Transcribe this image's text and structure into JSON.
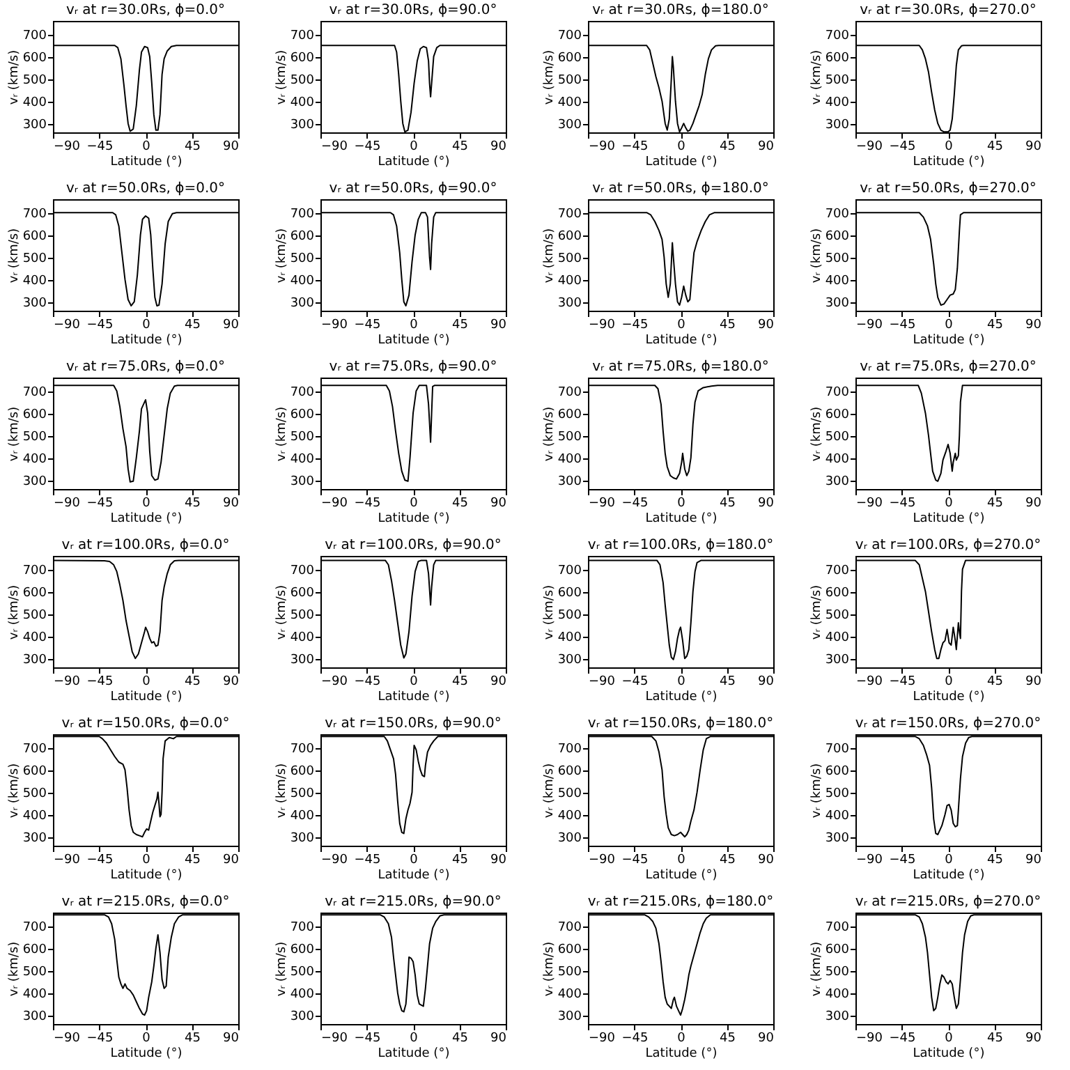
{
  "chart_data": [
    {
      "type": "line",
      "title": "vᵣ at r=30.0Rs, ϕ=0.0°",
      "xlabel": "Latitude (°)",
      "ylabel": "vᵣ (km/s)",
      "xlim": [
        -90,
        90
      ],
      "ylim": [
        260,
        760
      ],
      "xticks": [
        -90,
        -45,
        0,
        45,
        90
      ],
      "yticks": [
        300,
        400,
        500,
        600,
        700
      ],
      "series": [
        {
          "color": "#000000",
          "x": [
            -90,
            -30,
            -27,
            -24,
            -21,
            -19,
            -17,
            -15,
            -12,
            -9,
            -6,
            -4,
            -1,
            2,
            4,
            6,
            8,
            10,
            12,
            14,
            16,
            18,
            21,
            25,
            30,
            90
          ],
          "values": [
            650,
            650,
            640,
            590,
            470,
            380,
            300,
            265,
            275,
            380,
            540,
            620,
            645,
            640,
            600,
            480,
            340,
            270,
            270,
            340,
            520,
            590,
            625,
            645,
            650,
            650
          ]
        }
      ]
    },
    {
      "type": "line",
      "title": "vᵣ at r=30.0Rs, ϕ=90.0°",
      "xlabel": "Latitude (°)",
      "ylabel": "vᵣ (km/s)",
      "xlim": [
        -90,
        90
      ],
      "ylim": [
        260,
        760
      ],
      "xticks": [
        -90,
        -45,
        0,
        45,
        90
      ],
      "yticks": [
        300,
        400,
        500,
        600,
        700
      ],
      "series": [
        {
          "color": "#000000",
          "x": [
            -90,
            -18,
            -16,
            -14,
            -12,
            -10,
            -8,
            -5,
            -2,
            1,
            4,
            7,
            10,
            13,
            15,
            16,
            17,
            18,
            20,
            23,
            26,
            90
          ],
          "values": [
            650,
            650,
            620,
            520,
            400,
            300,
            262,
            270,
            350,
            480,
            580,
            635,
            645,
            640,
            580,
            480,
            420,
            480,
            600,
            640,
            650,
            650
          ]
        }
      ]
    },
    {
      "type": "line",
      "title": "vᵣ at r=30.0Rs, ϕ=180.0°",
      "xlabel": "Latitude (°)",
      "ylabel": "vᵣ (km/s)",
      "xlim": [
        -90,
        90
      ],
      "ylim": [
        260,
        760
      ],
      "xticks": [
        -90,
        -45,
        0,
        45,
        90
      ],
      "yticks": [
        300,
        400,
        500,
        600,
        700
      ],
      "series": [
        {
          "color": "#000000",
          "x": [
            -90,
            -33,
            -30,
            -27,
            -24,
            -21,
            -18,
            -15,
            -13,
            -11,
            -9,
            -8,
            -7,
            -5,
            -3,
            -1,
            1,
            3,
            5,
            7,
            9,
            12,
            15,
            18,
            21,
            24,
            27,
            30,
            34,
            37,
            90
          ],
          "values": [
            650,
            650,
            630,
            570,
            510,
            460,
            400,
            300,
            270,
            320,
            500,
            600,
            550,
            400,
            300,
            262,
            280,
            300,
            280,
            265,
            270,
            300,
            340,
            380,
            430,
            520,
            590,
            630,
            648,
            650,
            650
          ]
        }
      ]
    },
    {
      "type": "line",
      "title": "vᵣ at r=30.0Rs, ϕ=270.0°",
      "xlabel": "Latitude (°)",
      "ylabel": "vᵣ (km/s)",
      "xlim": [
        -90,
        90
      ],
      "ylim": [
        260,
        760
      ],
      "xticks": [
        -90,
        -45,
        0,
        45,
        90
      ],
      "yticks": [
        300,
        400,
        500,
        600,
        700
      ],
      "series": [
        {
          "color": "#000000",
          "x": [
            -90,
            -28,
            -25,
            -22,
            -19,
            -16,
            -13,
            -10,
            -7,
            -4,
            0,
            2,
            4,
            6,
            8,
            10,
            13,
            15,
            90
          ],
          "values": [
            650,
            650,
            630,
            590,
            530,
            440,
            360,
            300,
            270,
            262,
            262,
            270,
            320,
            430,
            560,
            630,
            648,
            650,
            650
          ]
        }
      ]
    },
    {
      "type": "line",
      "title": "vᵣ at r=50.0Rs, ϕ=0.0°",
      "xlabel": "Latitude (°)",
      "ylabel": "vᵣ (km/s)",
      "xlim": [
        -90,
        90
      ],
      "ylim": [
        260,
        760
      ],
      "xticks": [
        -90,
        -45,
        0,
        45,
        90
      ],
      "yticks": [
        300,
        400,
        500,
        600,
        700
      ],
      "series": [
        {
          "color": "#000000",
          "x": [
            -90,
            -32,
            -29,
            -26,
            -23,
            -20,
            -17,
            -14,
            -11,
            -8,
            -5,
            -3,
            0,
            3,
            5,
            7,
            9,
            11,
            13,
            16,
            19,
            22,
            26,
            30,
            90
          ],
          "values": [
            700,
            700,
            690,
            640,
            520,
            400,
            310,
            282,
            300,
            420,
            600,
            670,
            685,
            675,
            600,
            450,
            320,
            282,
            285,
            380,
            560,
            660,
            695,
            700,
            700
          ]
        }
      ]
    },
    {
      "type": "line",
      "title": "vᵣ at r=50.0Rs, ϕ=90.0°",
      "xlabel": "Latitude (°)",
      "ylabel": "vᵣ (km/s)",
      "xlim": [
        -90,
        90
      ],
      "ylim": [
        260,
        760
      ],
      "xticks": [
        -90,
        -45,
        0,
        45,
        90
      ],
      "yticks": [
        300,
        400,
        500,
        600,
        700
      ],
      "series": [
        {
          "color": "#000000",
          "x": [
            -90,
            -22,
            -19,
            -16,
            -13,
            -11,
            -9,
            -7,
            -4,
            -1,
            2,
            5,
            8,
            12,
            14,
            16,
            17,
            18,
            20,
            22,
            90
          ],
          "values": [
            700,
            700,
            690,
            640,
            520,
            400,
            300,
            282,
            330,
            480,
            600,
            670,
            700,
            700,
            680,
            500,
            445,
            560,
            680,
            700,
            700
          ]
        }
      ]
    },
    {
      "type": "line",
      "title": "vᵣ at r=50.0Rs, ϕ=180.0°",
      "xlabel": "Latitude (°)",
      "ylabel": "vᵣ (km/s)",
      "xlim": [
        -90,
        90
      ],
      "ylim": [
        260,
        760
      ],
      "xticks": [
        -90,
        -45,
        0,
        45,
        90
      ],
      "yticks": [
        300,
        400,
        500,
        600,
        700
      ],
      "series": [
        {
          "color": "#000000",
          "x": [
            -90,
            -33,
            -29,
            -25,
            -21,
            -18,
            -16,
            -14,
            -12,
            -10,
            -8,
            -7,
            -5,
            -3,
            -1,
            1,
            3,
            5,
            7,
            9,
            11,
            13,
            16,
            20,
            24,
            28,
            33,
            90
          ],
          "values": [
            700,
            700,
            690,
            660,
            620,
            580,
            500,
            380,
            320,
            380,
            565,
            500,
            380,
            300,
            285,
            320,
            370,
            330,
            300,
            310,
            420,
            520,
            570,
            620,
            660,
            690,
            700,
            700
          ]
        }
      ]
    },
    {
      "type": "line",
      "title": "vᵣ at r=50.0Rs, ϕ=270.0°",
      "xlabel": "Latitude (°)",
      "ylabel": "vᵣ (km/s)",
      "xlim": [
        -90,
        90
      ],
      "ylim": [
        260,
        760
      ],
      "xticks": [
        -90,
        -45,
        0,
        45,
        90
      ],
      "yticks": [
        300,
        400,
        500,
        600,
        700
      ],
      "series": [
        {
          "color": "#000000",
          "x": [
            -90,
            -28,
            -24,
            -20,
            -17,
            -14,
            -12,
            -10,
            -7,
            -4,
            -1,
            2,
            5,
            7,
            9,
            11,
            12,
            15,
            90
          ],
          "values": [
            700,
            700,
            680,
            640,
            580,
            470,
            380,
            320,
            285,
            290,
            310,
            330,
            335,
            355,
            450,
            620,
            690,
            700,
            700
          ]
        }
      ]
    },
    {
      "type": "line",
      "title": "vᵣ at r=75.0Rs, ϕ=0.0°",
      "xlabel": "Latitude (°)",
      "ylabel": "vᵣ (km/s)",
      "xlim": [
        -90,
        90
      ],
      "ylim": [
        260,
        760
      ],
      "xticks": [
        -90,
        -45,
        0,
        45,
        90
      ],
      "yticks": [
        300,
        400,
        500,
        600,
        700
      ],
      "series": [
        {
          "color": "#000000",
          "x": [
            -90,
            -31,
            -28,
            -25,
            -22,
            -19,
            -17,
            -15,
            -12,
            -9,
            -6,
            -4,
            -2,
            0,
            2,
            4,
            6,
            9,
            12,
            15,
            18,
            21,
            24,
            28,
            31,
            90
          ],
          "values": [
            725,
            725,
            700,
            630,
            530,
            450,
            350,
            292,
            295,
            400,
            520,
            620,
            640,
            660,
            600,
            430,
            320,
            300,
            305,
            380,
            500,
            620,
            690,
            722,
            725,
            725
          ]
        }
      ]
    },
    {
      "type": "line",
      "title": "vᵣ at r=75.0Rs, ϕ=90.0°",
      "xlabel": "Latitude (°)",
      "ylabel": "vᵣ (km/s)",
      "xlim": [
        -90,
        90
      ],
      "ylim": [
        260,
        760
      ],
      "xticks": [
        -90,
        -45,
        0,
        45,
        90
      ],
      "yticks": [
        300,
        400,
        500,
        600,
        700
      ],
      "series": [
        {
          "color": "#000000",
          "x": [
            -90,
            -26,
            -23,
            -20,
            -17,
            -14,
            -11,
            -8,
            -5,
            -3,
            0,
            3,
            6,
            13,
            15,
            17,
            18,
            19,
            21,
            90
          ],
          "values": [
            725,
            725,
            700,
            630,
            520,
            420,
            340,
            300,
            295,
            400,
            600,
            700,
            725,
            725,
            640,
            470,
            600,
            720,
            725,
            725
          ]
        }
      ]
    },
    {
      "type": "line",
      "title": "vᵣ at r=75.0Rs, ϕ=180.0°",
      "xlabel": "Latitude (°)",
      "ylabel": "vᵣ (km/s)",
      "xlim": [
        -90,
        90
      ],
      "ylim": [
        260,
        760
      ],
      "xticks": [
        -90,
        -45,
        0,
        45,
        90
      ],
      "yticks": [
        300,
        400,
        500,
        600,
        700
      ],
      "series": [
        {
          "color": "#000000",
          "x": [
            -90,
            -25,
            -22,
            -19,
            -17,
            -15,
            -13,
            -10,
            -7,
            -4,
            -1,
            1,
            2,
            4,
            6,
            8,
            10,
            12,
            14,
            17,
            22,
            30,
            36,
            90
          ],
          "values": [
            725,
            725,
            710,
            640,
            520,
            420,
            360,
            320,
            310,
            305,
            330,
            380,
            420,
            350,
            320,
            340,
            400,
            550,
            650,
            700,
            715,
            722,
            725,
            725
          ]
        }
      ]
    },
    {
      "type": "line",
      "title": "vᵣ at r=75.0Rs, ϕ=270.0°",
      "xlabel": "Latitude (°)",
      "ylabel": "vᵣ (km/s)",
      "xlim": [
        -90,
        90
      ],
      "ylim": [
        260,
        760
      ],
      "xticks": [
        -90,
        -45,
        0,
        45,
        90
      ],
      "yticks": [
        300,
        400,
        500,
        600,
        700
      ],
      "series": [
        {
          "color": "#000000",
          "x": [
            -90,
            -29,
            -26,
            -22,
            -19,
            -17,
            -15,
            -12,
            -10,
            -7,
            -5,
            -2,
            0,
            2,
            4,
            5,
            7,
            8,
            10,
            11,
            12,
            14,
            90
          ],
          "values": [
            725,
            725,
            690,
            600,
            500,
            420,
            340,
            300,
            295,
            330,
            390,
            430,
            460,
            420,
            340,
            380,
            420,
            390,
            410,
            500,
            650,
            725,
            725
          ]
        }
      ]
    },
    {
      "type": "line",
      "title": "vᵣ at r=100.0Rs, ϕ=0.0°",
      "xlabel": "Latitude (°)",
      "ylabel": "vᵣ (km/s)",
      "xlim": [
        -90,
        90
      ],
      "ylim": [
        260,
        760
      ],
      "xticks": [
        -90,
        -45,
        0,
        45,
        90
      ],
      "yticks": [
        300,
        400,
        500,
        600,
        700
      ],
      "series": [
        {
          "color": "#000000",
          "x": [
            -90,
            -40,
            -35,
            -31,
            -28,
            -25,
            -22,
            -19,
            -16,
            -13,
            -10,
            -7,
            -4,
            -1,
            0,
            2,
            4,
            6,
            8,
            10,
            12,
            14,
            16,
            18,
            21,
            24,
            28,
            32,
            90
          ],
          "values": [
            740,
            738,
            735,
            720,
            690,
            630,
            560,
            470,
            400,
            330,
            300,
            320,
            370,
            420,
            440,
            420,
            390,
            370,
            375,
            355,
            360,
            420,
            560,
            620,
            680,
            720,
            738,
            740,
            740
          ]
        }
      ]
    },
    {
      "type": "line",
      "title": "vᵣ at r=100.0Rs, ϕ=90.0°",
      "xlabel": "Latitude (°)",
      "ylabel": "vᵣ (km/s)",
      "xlim": [
        -90,
        90
      ],
      "ylim": [
        260,
        760
      ],
      "xticks": [
        -90,
        -45,
        0,
        45,
        90
      ],
      "yticks": [
        300,
        400,
        500,
        600,
        700
      ],
      "series": [
        {
          "color": "#000000",
          "x": [
            -90,
            -27,
            -24,
            -21,
            -18,
            -15,
            -12,
            -9,
            -7,
            -4,
            -1,
            2,
            5,
            8,
            13,
            15,
            17,
            18,
            20,
            22,
            90
          ],
          "values": [
            740,
            740,
            720,
            650,
            560,
            460,
            360,
            302,
            320,
            420,
            580,
            690,
            735,
            740,
            740,
            680,
            540,
            620,
            720,
            740,
            740
          ]
        }
      ]
    },
    {
      "type": "line",
      "title": "vᵣ at r=100.0Rs, ϕ=180.0°",
      "xlabel": "Latitude (°)",
      "ylabel": "vᵣ (km/s)",
      "xlim": [
        -90,
        90
      ],
      "ylim": [
        260,
        760
      ],
      "xticks": [
        -90,
        -45,
        0,
        45,
        90
      ],
      "yticks": [
        300,
        400,
        500,
        600,
        700
      ],
      "series": [
        {
          "color": "#000000",
          "x": [
            -90,
            -23,
            -20,
            -17,
            -15,
            -13,
            -11,
            -9,
            -7,
            -5,
            -3,
            -1,
            0,
            2,
            4,
            6,
            8,
            10,
            12,
            14,
            16,
            20,
            90
          ],
          "values": [
            740,
            740,
            720,
            640,
            540,
            450,
            360,
            305,
            295,
            330,
            390,
            430,
            440,
            380,
            300,
            310,
            340,
            460,
            600,
            690,
            730,
            740,
            740
          ]
        }
      ]
    },
    {
      "type": "line",
      "title": "vᵣ at r=100.0Rs, ϕ=270.0°",
      "xlabel": "Latitude (°)",
      "ylabel": "vᵣ (km/s)",
      "xlim": [
        -90,
        90
      ],
      "ylim": [
        260,
        760
      ],
      "xticks": [
        -90,
        -45,
        0,
        45,
        90
      ],
      "yticks": [
        300,
        400,
        500,
        600,
        700
      ],
      "series": [
        {
          "color": "#000000",
          "x": [
            -90,
            -32,
            -28,
            -25,
            -22,
            -19,
            -16,
            -13,
            -11,
            -9,
            -7,
            -5,
            -3,
            -1,
            1,
            3,
            5,
            7,
            8,
            10,
            11,
            12,
            13,
            14,
            17,
            90
          ],
          "values": [
            740,
            740,
            720,
            660,
            600,
            510,
            420,
            340,
            300,
            300,
            340,
            370,
            380,
            430,
            370,
            360,
            440,
            380,
            340,
            460,
            420,
            390,
            600,
            700,
            740,
            740
          ]
        }
      ]
    },
    {
      "type": "line",
      "title": "vᵣ at r=150.0Rs, ϕ=0.0°",
      "xlabel": "Latitude (°)",
      "ylabel": "vᵣ (km/s)",
      "xlim": [
        -90,
        90
      ],
      "ylim": [
        260,
        760
      ],
      "xticks": [
        -90,
        -45,
        0,
        45,
        90
      ],
      "yticks": [
        300,
        400,
        500,
        600,
        700
      ],
      "series": [
        {
          "color": "#000000",
          "x": [
            -90,
            -45,
            -42,
            -38,
            -34,
            -30,
            -26,
            -22,
            -20,
            -18,
            -16,
            -14,
            -12,
            -9,
            -6,
            -3,
            -1,
            1,
            3,
            5,
            7,
            9,
            11,
            12,
            13,
            14,
            15,
            16,
            17,
            19,
            23,
            27,
            30,
            90
          ],
          "values": [
            750,
            750,
            740,
            720,
            690,
            660,
            635,
            625,
            600,
            520,
            420,
            350,
            320,
            310,
            305,
            300,
            320,
            335,
            330,
            370,
            410,
            440,
            470,
            500,
            450,
            390,
            400,
            500,
            650,
            730,
            745,
            740,
            750,
            750
          ]
        }
      ]
    },
    {
      "type": "line",
      "title": "vᵣ at r=150.0Rs, ϕ=90.0°",
      "xlabel": "Latitude (°)",
      "ylabel": "vᵣ (km/s)",
      "xlim": [
        -90,
        90
      ],
      "ylim": [
        260,
        760
      ],
      "xticks": [
        -90,
        -45,
        0,
        45,
        90
      ],
      "yticks": [
        300,
        400,
        500,
        600,
        700
      ],
      "series": [
        {
          "color": "#000000",
          "x": [
            -90,
            -28,
            -25,
            -22,
            -19,
            -17,
            -15,
            -13,
            -11,
            -9,
            -7,
            -5,
            -3,
            -1,
            0,
            1,
            3,
            5,
            7,
            9,
            11,
            12,
            14,
            17,
            20,
            24,
            90
          ],
          "values": [
            750,
            750,
            730,
            690,
            650,
            580,
            460,
            360,
            320,
            315,
            380,
            420,
            450,
            500,
            620,
            710,
            690,
            640,
            600,
            575,
            570,
            620,
            680,
            710,
            730,
            750,
            750
          ]
        }
      ]
    },
    {
      "type": "line",
      "title": "vᵣ at r=150.0Rs, ϕ=180.0°",
      "xlabel": "Latitude (°)",
      "ylabel": "vᵣ (km/s)",
      "xlim": [
        -90,
        90
      ],
      "ylim": [
        260,
        760
      ],
      "xticks": [
        -90,
        -45,
        0,
        45,
        90
      ],
      "yticks": [
        300,
        400,
        500,
        600,
        700
      ],
      "series": [
        {
          "color": "#000000",
          "x": [
            -90,
            -28,
            -24,
            -21,
            -18,
            -16,
            -14,
            -12,
            -9,
            -6,
            -3,
            0,
            2,
            4,
            6,
            8,
            10,
            13,
            16,
            19,
            22,
            25,
            29,
            90
          ],
          "values": [
            750,
            750,
            730,
            680,
            600,
            480,
            400,
            340,
            310,
            305,
            310,
            320,
            310,
            300,
            310,
            330,
            370,
            420,
            500,
            600,
            690,
            740,
            750,
            750
          ]
        }
      ]
    },
    {
      "type": "line",
      "title": "vᵣ at r=150.0Rs, ϕ=270.0°",
      "xlabel": "Latitude (°)",
      "ylabel": "vᵣ (km/s)",
      "xlim": [
        -90,
        90
      ],
      "ylim": [
        260,
        760
      ],
      "xticks": [
        -90,
        -45,
        0,
        45,
        90
      ],
      "yticks": [
        300,
        400,
        500,
        600,
        700
      ],
      "series": [
        {
          "color": "#000000",
          "x": [
            -90,
            -32,
            -28,
            -24,
            -21,
            -18,
            -16,
            -14,
            -12,
            -10,
            -8,
            -6,
            -3,
            -1,
            1,
            3,
            5,
            7,
            9,
            10,
            12,
            14,
            17,
            20,
            23,
            90
          ],
          "values": [
            750,
            750,
            740,
            710,
            670,
            620,
            520,
            380,
            315,
            310,
            330,
            350,
            400,
            440,
            445,
            420,
            360,
            345,
            350,
            420,
            560,
            660,
            720,
            745,
            750,
            750
          ]
        }
      ]
    },
    {
      "type": "line",
      "title": "vᵣ at r=215.0Rs, ϕ=0.0°",
      "xlabel": "Latitude (°)",
      "ylabel": "vᵣ (km/s)",
      "xlim": [
        -90,
        90
      ],
      "ylim": [
        260,
        760
      ],
      "xticks": [
        -90,
        -45,
        0,
        45,
        90
      ],
      "yticks": [
        300,
        400,
        500,
        600,
        700
      ],
      "series": [
        {
          "color": "#000000",
          "x": [
            -90,
            -40,
            -36,
            -33,
            -30,
            -28,
            -26,
            -24,
            -22,
            -20,
            -18,
            -15,
            -12,
            -9,
            -6,
            -3,
            -1,
            1,
            3,
            6,
            8,
            10,
            12,
            14,
            16,
            18,
            20,
            22,
            25,
            28,
            32,
            36,
            90
          ],
          "values": [
            750,
            750,
            740,
            710,
            640,
            550,
            470,
            440,
            420,
            440,
            420,
            410,
            390,
            360,
            330,
            305,
            300,
            320,
            380,
            450,
            520,
            600,
            660,
            580,
            460,
            420,
            430,
            560,
            650,
            710,
            740,
            750,
            750
          ]
        }
      ]
    },
    {
      "type": "line",
      "title": "vᵣ at r=215.0Rs, ϕ=90.0°",
      "xlabel": "Latitude (°)",
      "ylabel": "vᵣ (km/s)",
      "xlim": [
        -90,
        90
      ],
      "ylim": [
        260,
        760
      ],
      "xticks": [
        -90,
        -45,
        0,
        45,
        90
      ],
      "yticks": [
        300,
        400,
        500,
        600,
        700
      ],
      "series": [
        {
          "color": "#000000",
          "x": [
            -90,
            -32,
            -28,
            -24,
            -21,
            -19,
            -17,
            -15,
            -13,
            -11,
            -9,
            -7,
            -5,
            -4,
            -2,
            0,
            2,
            4,
            6,
            8,
            10,
            12,
            14,
            16,
            19,
            22,
            26,
            30,
            90
          ],
          "values": [
            750,
            750,
            740,
            710,
            650,
            560,
            480,
            400,
            350,
            320,
            315,
            350,
            470,
            560,
            555,
            540,
            480,
            390,
            350,
            345,
            340,
            420,
            520,
            620,
            690,
            720,
            745,
            750,
            750
          ]
        }
      ]
    },
    {
      "type": "line",
      "title": "vᵣ at r=215.0Rs, ϕ=180.0°",
      "xlabel": "Latitude (°)",
      "ylabel": "vᵣ (km/s)",
      "xlim": [
        -90,
        90
      ],
      "ylim": [
        260,
        760
      ],
      "xticks": [
        -90,
        -45,
        0,
        45,
        90
      ],
      "yticks": [
        300,
        400,
        500,
        600,
        700
      ],
      "series": [
        {
          "color": "#000000",
          "x": [
            -90,
            -35,
            -31,
            -27,
            -24,
            -21,
            -19,
            -17,
            -15,
            -13,
            -11,
            -9,
            -7,
            -6,
            -4,
            -2,
            0,
            2,
            4,
            6,
            8,
            10,
            13,
            16,
            19,
            22,
            25,
            29,
            90
          ],
          "values": [
            750,
            750,
            740,
            720,
            690,
            620,
            540,
            450,
            380,
            350,
            340,
            330,
            370,
            380,
            340,
            320,
            300,
            330,
            370,
            420,
            480,
            520,
            570,
            620,
            670,
            710,
            735,
            750,
            750
          ]
        }
      ]
    },
    {
      "type": "line",
      "title": "vᵣ at r=215.0Rs, ϕ=270.0°",
      "xlabel": "Latitude (°)",
      "ylabel": "vᵣ (km/s)",
      "xlim": [
        -90,
        90
      ],
      "ylim": [
        260,
        760
      ],
      "xticks": [
        -90,
        -45,
        0,
        45,
        90
      ],
      "yticks": [
        300,
        400,
        500,
        600,
        700
      ],
      "series": [
        {
          "color": "#000000",
          "x": [
            -90,
            -32,
            -28,
            -25,
            -22,
            -20,
            -18,
            -16,
            -14,
            -12,
            -10,
            -8,
            -6,
            -4,
            -2,
            0,
            2,
            4,
            6,
            8,
            10,
            12,
            14,
            16,
            19,
            22,
            25,
            90
          ],
          "values": [
            750,
            750,
            740,
            710,
            650,
            580,
            480,
            380,
            320,
            330,
            380,
            440,
            480,
            470,
            450,
            440,
            455,
            440,
            380,
            330,
            350,
            460,
            580,
            660,
            720,
            745,
            750,
            750
          ]
        }
      ]
    }
  ]
}
